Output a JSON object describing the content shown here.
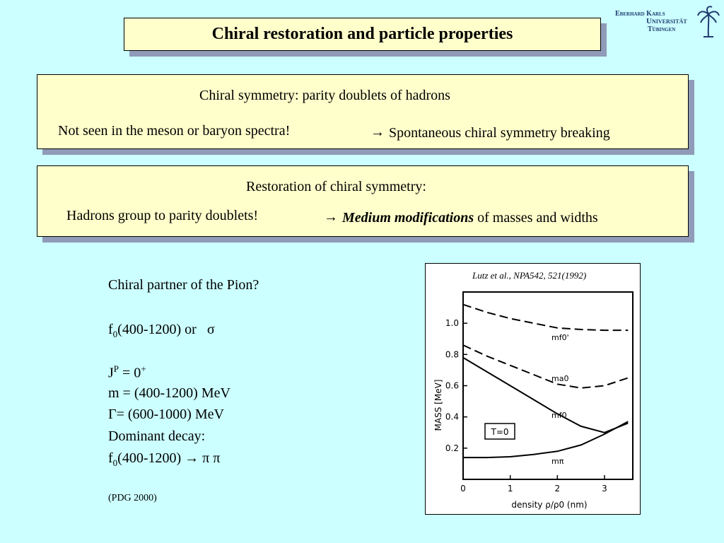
{
  "header": {
    "title": "Chiral restoration and particle properties",
    "logo": {
      "line1": "Eberhard Karls",
      "line2": "Universität",
      "line3": "Tübingen",
      "icon": "palm-tree-icon",
      "color": "#1e3a70"
    }
  },
  "box1": {
    "heading": "Chiral symmetry: parity doublets of hadrons",
    "left": "Not seen in the meson or baryon spectra!",
    "arrow": "→",
    "right": "Spontaneous chiral symmetry breaking"
  },
  "box2": {
    "heading": "Restoration of chiral symmetry:",
    "left": "Hadrons group to parity doublets!",
    "arrow": "→",
    "right_emph": "Medium modifications",
    "right_rest": "of masses and widths"
  },
  "left": {
    "question": "Chiral partner of the Pion?",
    "f0_base": "f",
    "f0_sub": "0",
    "f0_range": "(400-1200)  or",
    "sigma": "σ",
    "jp_j": "J",
    "jp_p": "P",
    "jp_eq": " = 0",
    "jp_plus": "+",
    "mass": "m = (400-1200) MeV",
    "width": "Γ= (600-1000) MeV",
    "decay_label": "Dominant decay:",
    "decay_f": "f",
    "decay_sub": "0",
    "decay_range": "(400-1200)",
    "decay_arrow": "→",
    "decay_products": "π π",
    "source": "(PDG 2000)"
  },
  "figure": {
    "reference": "Lutz et al., NPA542, 521(1992)",
    "ylabel": "MASS [MeV]",
    "xlabel": "density ρ/ρ0 (nm)",
    "yticks": [
      "1.0",
      "0.8",
      "0.6",
      "0.4",
      "0.2"
    ],
    "xticks": [
      "0",
      "1",
      "2",
      "3"
    ],
    "label_fprime": "mf0'",
    "label_a0": "ma0",
    "label_f0": "mf0",
    "label_pi": "mπ",
    "box_label": "T=0"
  },
  "chart_data": {
    "type": "line",
    "xlabel": "density ρ/ρ0 (nm)",
    "ylabel": "MASS [MeV]",
    "xlim": [
      0,
      3.6
    ],
    "ylim": [
      0,
      1.2
    ],
    "annotations": [
      "T=0"
    ],
    "series": [
      {
        "name": "mf0'",
        "style": "dashed",
        "x": [
          0,
          0.5,
          1,
          1.5,
          2,
          2.5,
          3,
          3.5
        ],
        "y": [
          1.12,
          1.07,
          1.03,
          1.0,
          0.97,
          0.96,
          0.955,
          0.955
        ]
      },
      {
        "name": "ma0",
        "style": "dashed",
        "x": [
          0,
          0.5,
          1,
          1.5,
          2,
          2.5,
          3,
          3.5
        ],
        "y": [
          0.86,
          0.79,
          0.73,
          0.67,
          0.61,
          0.585,
          0.6,
          0.65
        ]
      },
      {
        "name": "mf0",
        "style": "solid",
        "x": [
          0,
          0.5,
          1,
          1.5,
          2,
          2.5,
          3,
          3.5
        ],
        "y": [
          0.78,
          0.69,
          0.6,
          0.51,
          0.42,
          0.34,
          0.3,
          0.36
        ]
      },
      {
        "name": "mπ",
        "style": "solid",
        "x": [
          0,
          0.5,
          1,
          1.5,
          2,
          2.5,
          3,
          3.5
        ],
        "y": [
          0.14,
          0.14,
          0.145,
          0.16,
          0.18,
          0.22,
          0.29,
          0.37
        ]
      }
    ]
  }
}
